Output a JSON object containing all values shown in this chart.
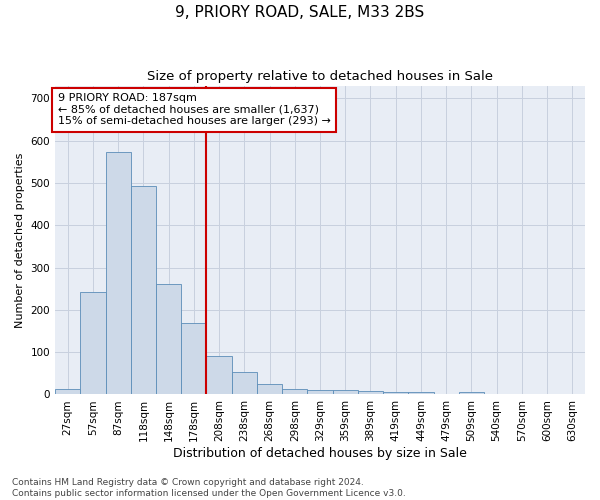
{
  "title": "9, PRIORY ROAD, SALE, M33 2BS",
  "subtitle": "Size of property relative to detached houses in Sale",
  "xlabel": "Distribution of detached houses by size in Sale",
  "ylabel": "Number of detached properties",
  "categories": [
    "27sqm",
    "57sqm",
    "87sqm",
    "118sqm",
    "148sqm",
    "178sqm",
    "208sqm",
    "238sqm",
    "268sqm",
    "298sqm",
    "329sqm",
    "359sqm",
    "389sqm",
    "419sqm",
    "449sqm",
    "479sqm",
    "509sqm",
    "540sqm",
    "570sqm",
    "600sqm",
    "630sqm"
  ],
  "values": [
    12,
    243,
    572,
    492,
    260,
    168,
    91,
    52,
    25,
    13,
    11,
    11,
    7,
    5,
    5,
    0,
    6,
    0,
    0,
    0,
    0
  ],
  "bar_color": "#cdd9e8",
  "bar_edge_color": "#5b8db8",
  "grid_color": "#c8d0de",
  "background_color": "#e8edf5",
  "vline_index": 5,
  "vline_color": "#cc0000",
  "annotation_line1": "9 PRIORY ROAD: 187sqm",
  "annotation_line2": "← 85% of detached houses are smaller (1,637)",
  "annotation_line3": "15% of semi-detached houses are larger (293) →",
  "annotation_box_color": "#cc0000",
  "ylim": [
    0,
    730
  ],
  "yticks": [
    0,
    100,
    200,
    300,
    400,
    500,
    600,
    700
  ],
  "footer_text": "Contains HM Land Registry data © Crown copyright and database right 2024.\nContains public sector information licensed under the Open Government Licence v3.0.",
  "title_fontsize": 11,
  "subtitle_fontsize": 9.5,
  "xlabel_fontsize": 9,
  "ylabel_fontsize": 8,
  "tick_fontsize": 7.5,
  "annotation_fontsize": 8,
  "footer_fontsize": 6.5
}
